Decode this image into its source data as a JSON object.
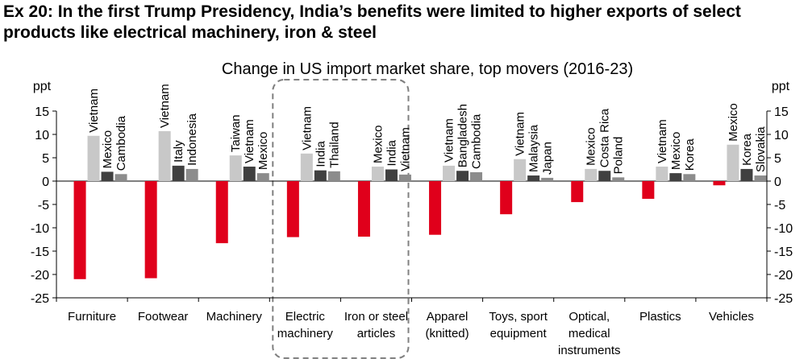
{
  "header": {
    "title": "Ex 20: In the first Trump Presidency, India’s benefits were limited to higher exports of select products like electrical machinery, iron & steel"
  },
  "colors": {
    "china": "#e0001b",
    "first": "#c8c8c8",
    "second": "#404040",
    "third": "#8c8c8c",
    "highlight_box": "#808080"
  },
  "chart_data": {
    "type": "bar",
    "title": "Change in US import market share, top movers (2016-23)",
    "ylabel_left": "ppt",
    "ylabel_right": "ppt",
    "ylim": [
      -25,
      15
    ],
    "yticks": [
      -25,
      -20,
      -15,
      -10,
      -5,
      0,
      5,
      10,
      15
    ],
    "categories": [
      [
        "Furniture"
      ],
      [
        "Footwear"
      ],
      [
        "Machinery"
      ],
      [
        "Electric",
        "machinery"
      ],
      [
        "Iron or steel",
        "articles"
      ],
      [
        "Apparel",
        "(knitted)"
      ],
      [
        "Toys, sport",
        "equipment"
      ],
      [
        "Optical,",
        "medical",
        "instruments"
      ],
      [
        "Plastics"
      ],
      [
        "Vehicles"
      ]
    ],
    "highlighted_categories": [
      3,
      4
    ],
    "groups": [
      {
        "values": [
          -21.0,
          9.7,
          2.0,
          1.5
        ],
        "countries": [
          "Vietnam",
          "Mexico",
          "Cambodia"
        ]
      },
      {
        "values": [
          -20.8,
          10.7,
          3.3,
          2.6
        ],
        "countries": [
          "Vietnam",
          "Italy",
          "Indonesia"
        ]
      },
      {
        "values": [
          -13.3,
          5.5,
          3.1,
          1.7
        ],
        "countries": [
          "Taiwan",
          "Vietnam",
          "Mexico"
        ]
      },
      {
        "values": [
          -12.0,
          5.9,
          2.3,
          2.1
        ],
        "countries": [
          "Vietnam",
          "India",
          "Thailand"
        ]
      },
      {
        "values": [
          -11.9,
          3.1,
          2.5,
          1.4
        ],
        "countries": [
          "Mexico",
          "India",
          "Vietnam"
        ]
      },
      {
        "values": [
          -11.5,
          3.3,
          2.2,
          1.9
        ],
        "countries": [
          "Vietnam",
          "Bangladesh",
          "Cambodia"
        ]
      },
      {
        "values": [
          -7.1,
          4.7,
          1.2,
          0.7
        ],
        "countries": [
          "Vietnam",
          "Malaysia",
          "Japan"
        ]
      },
      {
        "values": [
          -4.5,
          2.6,
          2.2,
          0.8
        ],
        "countries": [
          "Mexico",
          "Costa Rica",
          "Poland"
        ]
      },
      {
        "values": [
          -3.8,
          3.1,
          1.7,
          1.5
        ],
        "countries": [
          "Vietnam",
          "Mexico",
          "Korea"
        ]
      },
      {
        "values": [
          -0.9,
          7.8,
          2.6,
          1.2
        ],
        "countries": [
          "Mexico",
          "Korea",
          "Slovakia"
        ]
      }
    ]
  }
}
